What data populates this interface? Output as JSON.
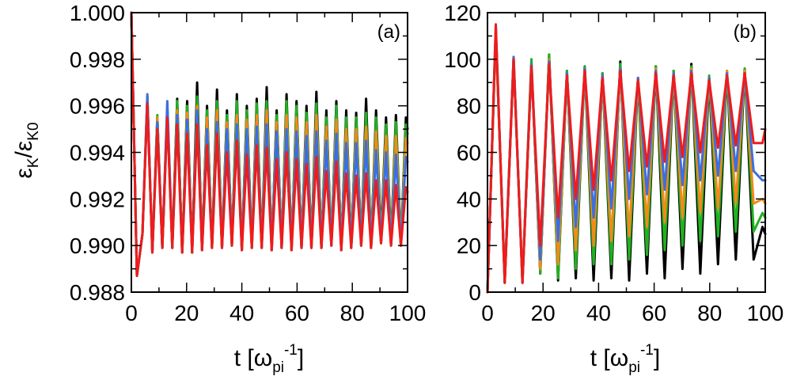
{
  "chart_data": [
    {
      "type": "line",
      "panel_label": "(a)",
      "xlabel": "t [ω_pi^-1]",
      "ylabel": "ε_K/ε_K0",
      "xlim": [
        0,
        100
      ],
      "ylim": [
        0.988,
        1.0
      ],
      "xticks": [
        "0",
        "20",
        "40",
        "60",
        "80",
        "100"
      ],
      "yticks": [
        "0.988",
        "0.990",
        "0.992",
        "0.994",
        "0.996",
        "0.998",
        "1.000"
      ],
      "x": [
        0,
        2,
        4,
        5.8,
        7.6,
        9.4,
        11.2,
        13,
        14.8,
        16.6,
        18.4,
        20.2,
        22,
        23.8,
        25.6,
        27.4,
        29.2,
        31,
        32.8,
        34.6,
        36.4,
        38.2,
        40,
        41.8,
        43.6,
        45.4,
        47.2,
        49,
        50.8,
        52.6,
        54.4,
        56.2,
        58,
        59.8,
        61.6,
        63.4,
        65.2,
        67,
        68.8,
        70.6,
        72.4,
        74.2,
        76,
        77.8,
        79.6,
        81.4,
        83.2,
        85,
        86.8,
        88.6,
        90.4,
        92.2,
        94,
        95.8,
        97.6,
        99.4,
        100
      ],
      "series": [
        {
          "name": "black",
          "color": "#000000",
          "values": [
            1.0,
            0.9887,
            0.9905,
            0.9963,
            0.9897,
            0.9955,
            0.9899,
            0.9958,
            0.9899,
            0.9963,
            0.9897,
            0.9962,
            0.9897,
            0.997,
            0.9898,
            0.996,
            0.9899,
            0.9967,
            0.9899,
            0.9958,
            0.99,
            0.9965,
            0.9898,
            0.996,
            0.9899,
            0.9963,
            0.9899,
            0.9968,
            0.9898,
            0.9958,
            0.9899,
            0.9965,
            0.9898,
            0.9962,
            0.9899,
            0.996,
            0.9899,
            0.9966,
            0.9899,
            0.9958,
            0.99,
            0.9962,
            0.9898,
            0.9958,
            0.9899,
            0.9957,
            0.99,
            0.9963,
            0.9899,
            0.9958,
            0.9903,
            0.9955,
            0.9901,
            0.9956,
            0.99,
            0.9955,
            0.995
          ]
        },
        {
          "name": "green",
          "color": "#22b022",
          "values": [
            1.0,
            0.9887,
            0.9905,
            0.9964,
            0.9897,
            0.9956,
            0.9899,
            0.996,
            0.9899,
            0.9962,
            0.9897,
            0.996,
            0.9897,
            0.9964,
            0.9898,
            0.9958,
            0.9899,
            0.9962,
            0.9899,
            0.9956,
            0.99,
            0.9962,
            0.9898,
            0.9958,
            0.9899,
            0.9961,
            0.9899,
            0.9962,
            0.9898,
            0.9956,
            0.9899,
            0.9962,
            0.9898,
            0.996,
            0.9899,
            0.9957,
            0.9899,
            0.9961,
            0.9899,
            0.9955,
            0.99,
            0.996,
            0.9898,
            0.9955,
            0.9899,
            0.9955,
            0.99,
            0.9957,
            0.9899,
            0.9955,
            0.9901,
            0.9952,
            0.99,
            0.9953,
            0.99,
            0.9952,
            0.9948
          ]
        },
        {
          "name": "orange",
          "color": "#f08a1a",
          "values": [
            1.0,
            0.9887,
            0.9905,
            0.9963,
            0.9897,
            0.9955,
            0.9899,
            0.9957,
            0.9899,
            0.9958,
            0.9897,
            0.9957,
            0.9897,
            0.996,
            0.9898,
            0.9955,
            0.9899,
            0.9958,
            0.9899,
            0.9953,
            0.99,
            0.9956,
            0.9898,
            0.9954,
            0.9899,
            0.9956,
            0.9899,
            0.9958,
            0.9898,
            0.9953,
            0.9899,
            0.9956,
            0.9898,
            0.9955,
            0.9899,
            0.9953,
            0.9899,
            0.9956,
            0.9899,
            0.9951,
            0.99,
            0.9954,
            0.9898,
            0.995,
            0.9899,
            0.995,
            0.99,
            0.9951,
            0.9899,
            0.9949,
            0.9901,
            0.9947,
            0.99,
            0.9947,
            0.99,
            0.9946,
            0.9944
          ]
        },
        {
          "name": "blue",
          "color": "#3a6fe0",
          "values": [
            1.0,
            0.9887,
            0.9905,
            0.9965,
            0.9897,
            0.9953,
            0.9899,
            0.9962,
            0.9899,
            0.9956,
            0.9897,
            0.9954,
            0.9897,
            0.9958,
            0.9898,
            0.995,
            0.9899,
            0.9953,
            0.9899,
            0.995,
            0.99,
            0.9952,
            0.9898,
            0.995,
            0.9899,
            0.9951,
            0.9899,
            0.9952,
            0.9898,
            0.9949,
            0.9899,
            0.995,
            0.9898,
            0.9949,
            0.9899,
            0.9947,
            0.9899,
            0.9949,
            0.9899,
            0.9945,
            0.99,
            0.9948,
            0.9898,
            0.9944,
            0.9899,
            0.9944,
            0.99,
            0.9945,
            0.9899,
            0.9941,
            0.9901,
            0.994,
            0.99,
            0.9939,
            0.99,
            0.9938,
            0.9936
          ]
        },
        {
          "name": "red",
          "color": "#ee1c1c",
          "values": [
            1.0,
            0.9887,
            0.9905,
            0.9961,
            0.9897,
            0.995,
            0.9899,
            0.9955,
            0.9899,
            0.9952,
            0.9897,
            0.9948,
            0.9897,
            0.9952,
            0.9898,
            0.9943,
            0.9899,
            0.9948,
            0.9899,
            0.994,
            0.99,
            0.9945,
            0.9898,
            0.9939,
            0.9899,
            0.9943,
            0.9899,
            0.9942,
            0.9898,
            0.9937,
            0.9899,
            0.994,
            0.9898,
            0.9937,
            0.9899,
            0.9935,
            0.9899,
            0.9938,
            0.9899,
            0.9932,
            0.99,
            0.9936,
            0.9898,
            0.9931,
            0.9899,
            0.993,
            0.99,
            0.9931,
            0.9899,
            0.9928,
            0.9901,
            0.9928,
            0.99,
            0.9926,
            0.99,
            0.9925,
            0.9923
          ]
        }
      ]
    },
    {
      "type": "line",
      "panel_label": "(b)",
      "xlabel": "t [ω_pi^-1]",
      "ylabel": "",
      "xlim": [
        0,
        100
      ],
      "ylim": [
        0,
        120
      ],
      "xticks": [
        "0",
        "20",
        "40",
        "60",
        "80",
        "100"
      ],
      "yticks": [
        "0",
        "20",
        "40",
        "60",
        "80",
        "100",
        "120"
      ],
      "x": [
        0,
        3,
        6.2,
        9.4,
        12.6,
        15.8,
        19,
        22.2,
        25.4,
        28.6,
        31.8,
        35,
        38.2,
        41.4,
        44.6,
        47.8,
        51,
        54.2,
        57.4,
        60.6,
        63.8,
        67,
        70.2,
        73.4,
        76.6,
        79.8,
        83,
        86.2,
        89.4,
        92.6,
        95.8,
        99,
        100
      ],
      "series": [
        {
          "name": "black",
          "color": "#000000",
          "values": [
            0,
            112,
            4,
            100,
            4,
            98,
            8,
            102,
            5,
            95,
            6,
            97,
            5,
            94,
            6,
            99,
            5,
            92,
            8,
            97,
            6,
            95,
            10,
            98,
            8,
            92,
            12,
            95,
            14,
            96,
            14,
            28,
            25
          ]
        },
        {
          "name": "green",
          "color": "#22b022",
          "values": [
            0,
            112,
            5,
            101,
            5,
            100,
            8,
            102,
            6,
            95,
            10,
            97,
            12,
            94,
            12,
            98,
            14,
            92,
            16,
            97,
            18,
            95,
            20,
            97,
            22,
            93,
            24,
            95,
            26,
            96,
            26,
            34,
            32
          ]
        },
        {
          "name": "orange",
          "color": "#f08a1a",
          "values": [
            0,
            112,
            5,
            100,
            5,
            98,
            10,
            100,
            12,
            94,
            18,
            96,
            20,
            93,
            22,
            96,
            24,
            92,
            28,
            96,
            30,
            94,
            32,
            96,
            34,
            92,
            36,
            95,
            38,
            95,
            38,
            40,
            38
          ]
        },
        {
          "name": "blue",
          "color": "#3a6fe0",
          "values": [
            0,
            114,
            5,
            101,
            4,
            98,
            14,
            99,
            22,
            94,
            28,
            96,
            32,
            93,
            36,
            96,
            40,
            92,
            42,
            95,
            44,
            94,
            46,
            95,
            48,
            92,
            50,
            94,
            52,
            94,
            52,
            48,
            48
          ]
        },
        {
          "name": "red",
          "color": "#ee1c1c",
          "values": [
            0,
            115,
            4,
            100,
            4,
            97,
            20,
            98,
            32,
            93,
            40,
            95,
            44,
            92,
            48,
            95,
            52,
            91,
            54,
            94,
            56,
            93,
            58,
            94,
            60,
            91,
            62,
            93,
            63,
            94,
            64,
            64,
            70
          ]
        }
      ]
    }
  ]
}
